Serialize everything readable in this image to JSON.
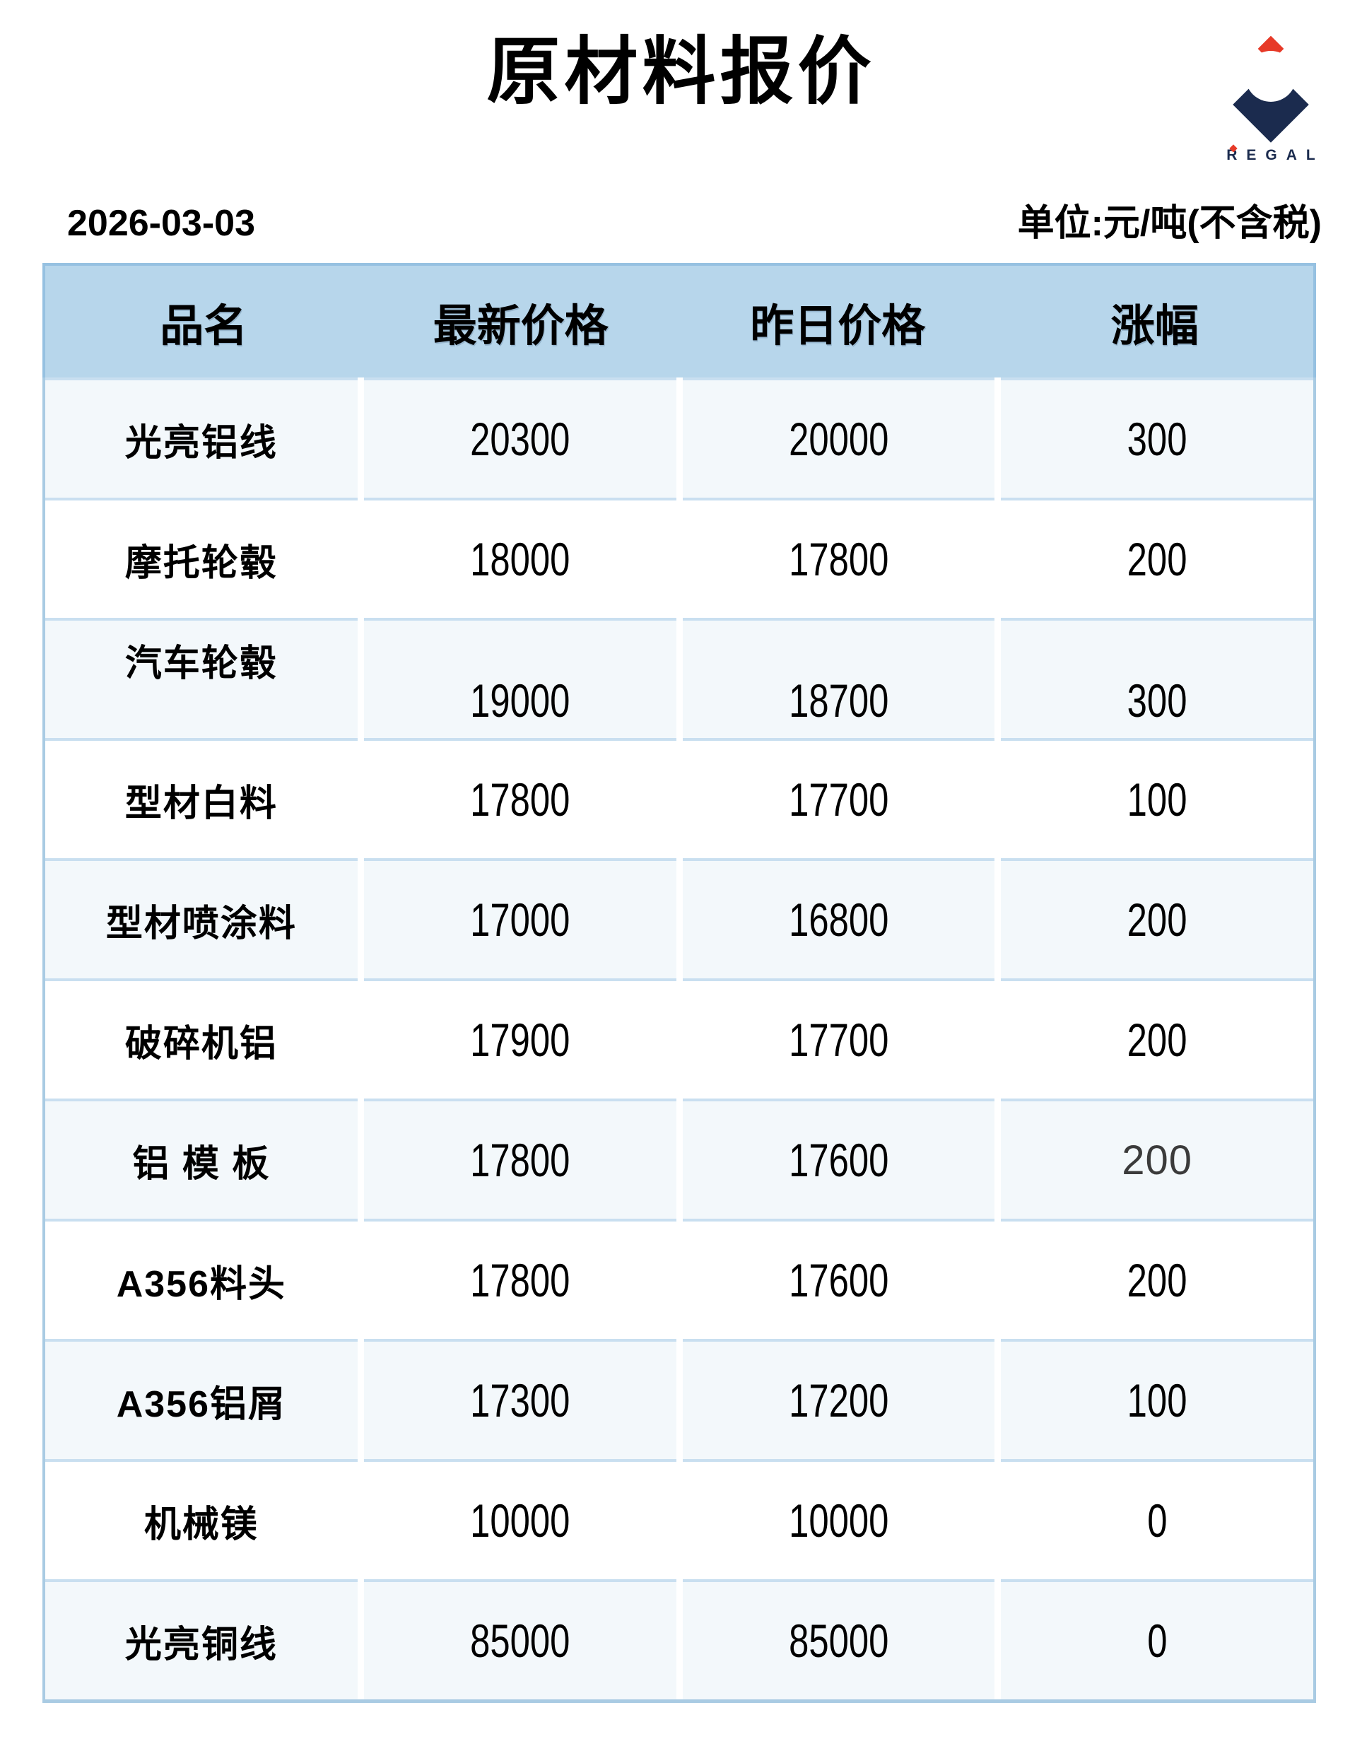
{
  "page": {
    "title": "原材料报价",
    "date": "2026-03-03",
    "unit_note": "单位:元/吨(不含税)"
  },
  "logo": {
    "text": "REGAL",
    "navy": "#1b2b4e",
    "red": "#e73a28"
  },
  "colors": {
    "header_bg": "#b7d6eb",
    "header_border": "#96c1e1",
    "row_alt_bg": "#f3f8fb",
    "row_separator": "#c9dff0",
    "outer_border": "#a9cbe3"
  },
  "table": {
    "columns": [
      {
        "key": "name",
        "label": "品名"
      },
      {
        "key": "latest",
        "label": "最新价格"
      },
      {
        "key": "yesterday",
        "label": "昨日价格"
      },
      {
        "key": "change",
        "label": "涨幅"
      }
    ],
    "rows": [
      {
        "name": "光亮铝线",
        "latest": "20300",
        "yesterday": "20000",
        "change": "300"
      },
      {
        "name": "摩托轮毂",
        "latest": "18000",
        "yesterday": "17800",
        "change": "200"
      },
      {
        "name": "汽车轮毂",
        "latest": "19000",
        "yesterday": "18700",
        "change": "300"
      },
      {
        "name": "型材白料",
        "latest": "17800",
        "yesterday": "17700",
        "change": "100"
      },
      {
        "name": "型材喷涂料",
        "latest": "17000",
        "yesterday": "16800",
        "change": "200"
      },
      {
        "name": "破碎机铝",
        "latest": "17900",
        "yesterday": "17700",
        "change": "200"
      },
      {
        "name": "铝 模 板",
        "latest": "17800",
        "yesterday": "17600",
        "change": "200"
      },
      {
        "name": "A356料头",
        "latest": "17800",
        "yesterday": "17600",
        "change": "200"
      },
      {
        "name": "A356铝屑",
        "latest": "17300",
        "yesterday": "17200",
        "change": "100"
      },
      {
        "name": "机械镁",
        "latest": "10000",
        "yesterday": "10000",
        "change": "0"
      },
      {
        "name": "光亮铜线",
        "latest": "85000",
        "yesterday": "85000",
        "change": "0"
      }
    ]
  }
}
